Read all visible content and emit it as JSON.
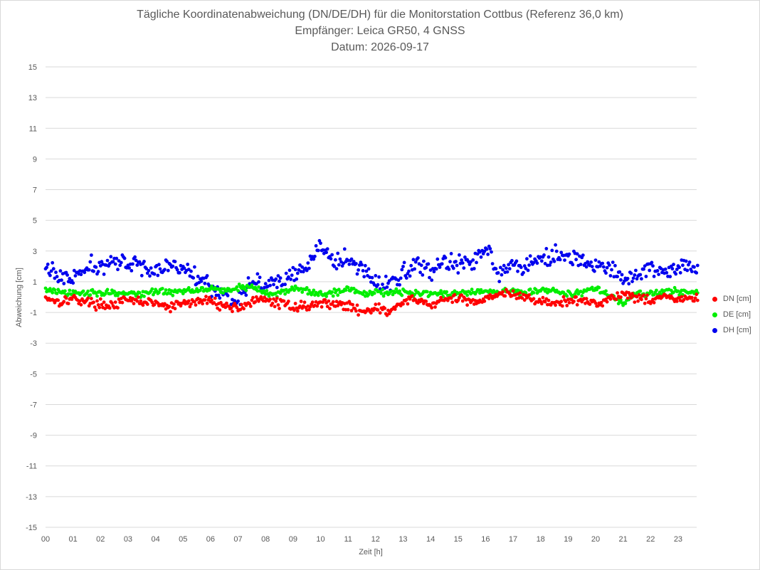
{
  "chart_data": {
    "type": "scatter",
    "title": [
      "Tägliche Koordinatenabweichung (DN/DE/DH) für die Monitorstation Cottbus (Referenz 36,0 km)",
      "Empfänger: Leica GR50, 4 GNSS",
      "Datum: 2026-09-17"
    ],
    "xlabel": "Zeit [h]",
    "ylabel": "Abweichung [cm]",
    "ylim": [
      -15,
      15
    ],
    "xlim": [
      0,
      24
    ],
    "yticks": [
      "15",
      "13",
      "11",
      "9",
      "7",
      "5",
      "3",
      "1",
      "-1",
      "-3",
      "-5",
      "-7",
      "-9",
      "-11",
      "-13",
      "-15"
    ],
    "xticks": [
      "00",
      "01",
      "02",
      "03",
      "04",
      "05",
      "06",
      "07",
      "08",
      "09",
      "10",
      "11",
      "12",
      "13",
      "14",
      "15",
      "16",
      "17",
      "18",
      "19",
      "20",
      "21",
      "22",
      "23"
    ],
    "grid": "horizontal",
    "legend_position": "right",
    "series": [
      {
        "name": "DN [cm]",
        "color": "#ff0000",
        "x": [
          0,
          0.5,
          1,
          1.5,
          2,
          2.5,
          3,
          3.5,
          4,
          4.5,
          5,
          5.5,
          6,
          6.5,
          7,
          7.5,
          8,
          8.5,
          9,
          9.5,
          10,
          10.5,
          11,
          11.5,
          12,
          12.5,
          13,
          13.5,
          14,
          14.5,
          15,
          15.5,
          16,
          16.5,
          17,
          17.5,
          18,
          18.5,
          19,
          19.5,
          20,
          20.5,
          21,
          21.5,
          22,
          22.5,
          23,
          23.5
        ],
        "y": [
          0,
          -0.3,
          -0.1,
          -0.3,
          -0.5,
          -0.5,
          -0.2,
          -0.3,
          -0.4,
          -0.7,
          -0.4,
          -0.3,
          -0.2,
          -0.6,
          -0.7,
          -0.3,
          -0.2,
          -0.4,
          -0.6,
          -0.6,
          -0.4,
          -0.4,
          -0.6,
          -0.9,
          -0.7,
          -1.0,
          -0.3,
          -0.2,
          -0.5,
          -0.2,
          -0.1,
          -0.3,
          -0.1,
          0.3,
          0.1,
          0.0,
          -0.3,
          -0.4,
          -0.3,
          -0.2,
          -0.4,
          -0.1,
          0.2,
          0.0,
          -0.2,
          0.1,
          -0.2,
          -0.1
        ]
      },
      {
        "name": "DE [cm]",
        "color": "#00ee00",
        "x": [
          0,
          0.5,
          1,
          1.5,
          2,
          2.5,
          3,
          3.5,
          4,
          4.5,
          5,
          5.5,
          6,
          6.5,
          7,
          7.5,
          8,
          8.5,
          9,
          9.5,
          10,
          10.5,
          11,
          11.5,
          12,
          12.5,
          13,
          13.5,
          14,
          14.5,
          15,
          15.5,
          16,
          16.5,
          17,
          17.5,
          18,
          18.5,
          19,
          19.5,
          20,
          20.5,
          21,
          21.5,
          22,
          22.5,
          23,
          23.5
        ],
        "y": [
          0.5,
          0.3,
          0.2,
          0.3,
          0.3,
          0.3,
          0.2,
          0.2,
          0.4,
          0.3,
          0.4,
          0.5,
          0.6,
          0.4,
          0.6,
          0.7,
          0.2,
          0.3,
          0.5,
          0.4,
          0.2,
          0.3,
          0.6,
          0.2,
          0.4,
          0.3,
          0.3,
          0.3,
          0.3,
          0.2,
          0.2,
          0.3,
          0.4,
          0.3,
          0.4,
          0.3,
          0.5,
          0.4,
          0.2,
          0.3,
          0.6,
          0.1,
          -0.4,
          0.2,
          0.2,
          0.3,
          0.4,
          0.3
        ]
      },
      {
        "name": "DH [cm]",
        "color": "#0000ee",
        "x": [
          0,
          0.5,
          1,
          1.5,
          2,
          2.5,
          3,
          3.5,
          4,
          4.5,
          5,
          5.5,
          6,
          6.5,
          7,
          7.5,
          8,
          8.5,
          9,
          9.5,
          10,
          10.5,
          11,
          11.5,
          12,
          12.5,
          13,
          13.5,
          14,
          14.5,
          15,
          15.5,
          16,
          16.5,
          17,
          17.5,
          18,
          18.5,
          19,
          19.5,
          20,
          20.5,
          21,
          21.5,
          22,
          22.5,
          23,
          23.5
        ],
        "y": [
          2.0,
          1.3,
          1.2,
          1.8,
          2.1,
          2.3,
          2.0,
          2.2,
          1.7,
          2.0,
          1.8,
          1.5,
          0.6,
          0.3,
          -0.2,
          1.2,
          0.8,
          0.9,
          1.4,
          1.9,
          3.4,
          2.2,
          2.4,
          1.9,
          0.8,
          0.7,
          1.7,
          2.2,
          1.6,
          2.4,
          2.3,
          2.0,
          3.4,
          1.8,
          2.0,
          2.2,
          2.6,
          2.8,
          2.5,
          2.4,
          2.0,
          1.8,
          1.2,
          1.4,
          1.9,
          1.7,
          1.8,
          2.0
        ]
      }
    ]
  }
}
